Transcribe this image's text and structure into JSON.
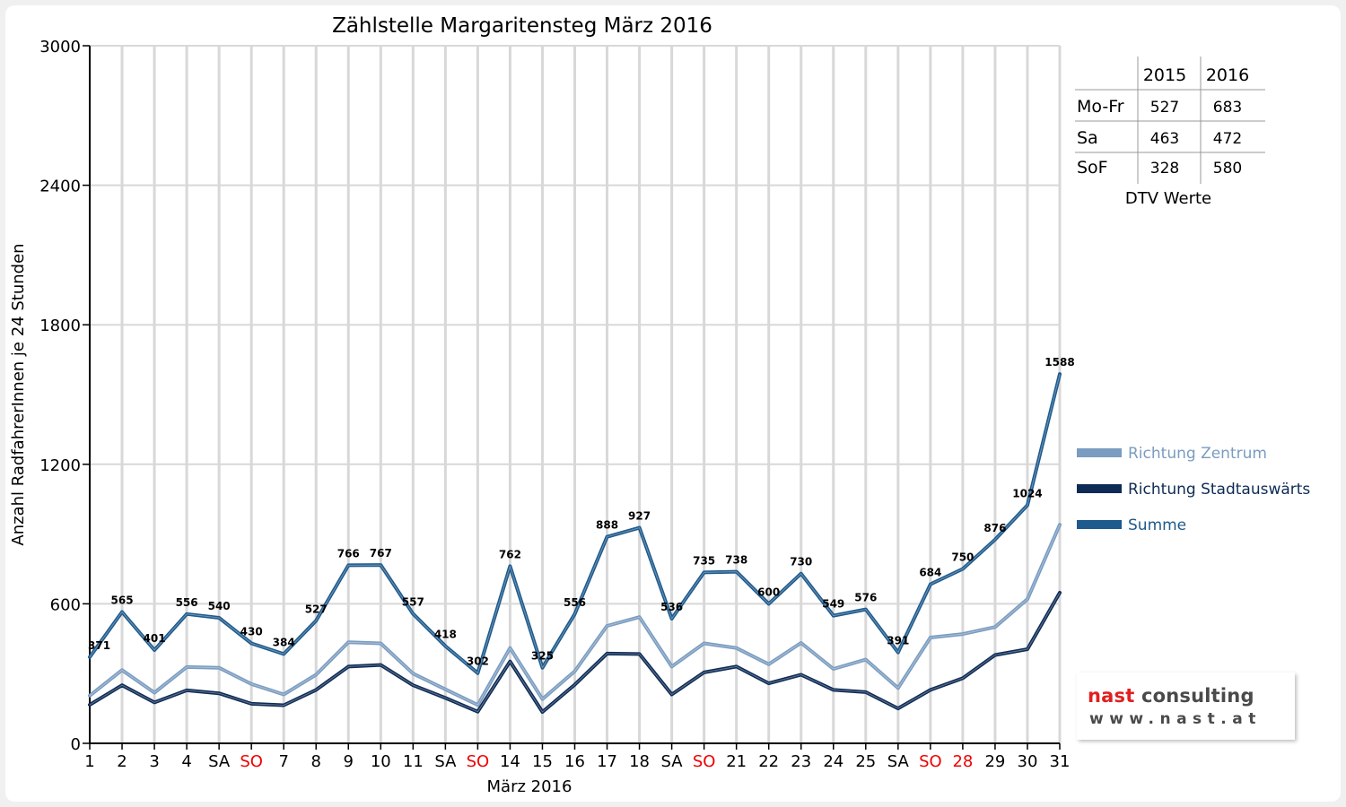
{
  "chart_data": {
    "type": "line",
    "title": "Zählstelle Margaritensteg März 2016",
    "xlabel": "März 2016",
    "ylabel": "Anzahl RadfahrerInnen je 24 Stunden",
    "ylim": [
      0,
      3000
    ],
    "yticks": [
      "0",
      "600",
      "1200",
      "1800",
      "2400",
      "3000"
    ],
    "grid": true,
    "categories": [
      "1",
      "2",
      "3",
      "4",
      "SA",
      "SO",
      "7",
      "8",
      "9",
      "10",
      "11",
      "SA",
      "SO",
      "14",
      "15",
      "16",
      "17",
      "18",
      "SA",
      "SO",
      "21",
      "22",
      "23",
      "24",
      "25",
      "SA",
      "SO",
      "28",
      "29",
      "30",
      "31"
    ],
    "highlight_categories": [
      5,
      12,
      19,
      26,
      27
    ],
    "series": [
      {
        "name": "Richtung Zentrum",
        "color": "#7a9cc0",
        "values": [
          205,
          315,
          218,
          328,
          325,
          255,
          210,
          295,
          435,
          430,
          300,
          232,
          165,
          410,
          190,
          310,
          505,
          543,
          330,
          430,
          410,
          340,
          432,
          320,
          360,
          238,
          455,
          470,
          500,
          620,
          940
        ]
      },
      {
        "name": "Richtung Stadtauswärts",
        "color": "#0e2b55",
        "values": [
          166,
          250,
          176,
          228,
          215,
          170,
          164,
          230,
          330,
          337,
          250,
          195,
          136,
          352,
          135,
          252,
          386,
          384,
          210,
          305,
          330,
          258,
          295,
          230,
          220,
          150,
          230,
          280,
          380,
          405,
          648
        ]
      },
      {
        "name": "Summe",
        "color": "#1e5a8c",
        "values": [
          371,
          565,
          401,
          556,
          540,
          430,
          384,
          527,
          766,
          767,
          557,
          418,
          302,
          762,
          325,
          556,
          888,
          927,
          536,
          735,
          738,
          600,
          730,
          549,
          576,
          391,
          684,
          750,
          876,
          1024,
          1588
        ],
        "labels": [
          "371",
          "565",
          "401",
          "556",
          "540",
          "430",
          "384",
          "527",
          "766",
          "767",
          "557",
          "418",
          "302",
          "762",
          "325",
          "556",
          "888",
          "927",
          "536",
          "735",
          "738",
          "600",
          "730",
          "549",
          "576",
          "391",
          "684",
          "750",
          "876",
          "1024",
          "1588"
        ]
      }
    ],
    "legend_position": "right",
    "table": {
      "caption": "DTV Werte",
      "columns": [
        "",
        "2015",
        "2016"
      ],
      "rows": [
        [
          "Mo-Fr",
          "527",
          "683"
        ],
        [
          "Sa",
          "463",
          "472"
        ],
        [
          "SoF",
          "328",
          "580"
        ]
      ]
    }
  },
  "logo": {
    "word1": "nast",
    "word2": " consulting",
    "url": "www.nast.at"
  }
}
